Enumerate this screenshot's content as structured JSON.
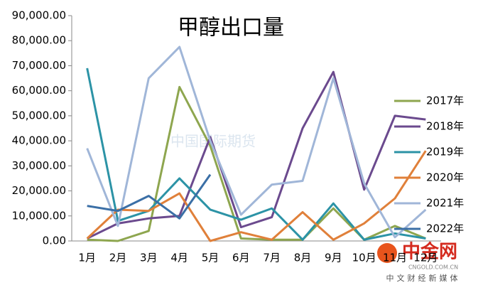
{
  "chart_data": {
    "type": "line",
    "title": "甲醇出口量",
    "categories": [
      "1月",
      "2月",
      "3月",
      "4月",
      "5月",
      "6月",
      "7月",
      "8月",
      "9月",
      "10月",
      "11月",
      "12月"
    ],
    "series": [
      {
        "name": "2017年",
        "color": "#8ea64f",
        "values": [
          500,
          0,
          4000,
          61500,
          38000,
          1000,
          500,
          500,
          13000,
          500,
          6000,
          1000
        ]
      },
      {
        "name": "2018年",
        "color": "#6b4a8e",
        "values": [
          1000,
          7000,
          9000,
          10000,
          41500,
          5500,
          9500,
          45000,
          67500,
          20500,
          50000,
          48500
        ]
      },
      {
        "name": "2019年",
        "color": "#2c93a6",
        "values": [
          69000,
          8000,
          12000,
          25000,
          12500,
          8500,
          13000,
          500,
          15000,
          500,
          3000,
          1000
        ]
      },
      {
        "name": "2020年",
        "color": "#e0803a",
        "values": [
          1000,
          12500,
          12000,
          19000,
          0,
          3500,
          500,
          11500,
          500,
          7000,
          17000,
          36000
        ]
      },
      {
        "name": "2021年",
        "color": "#a0b6d8",
        "values": [
          37000,
          6000,
          65000,
          77500,
          40000,
          10500,
          22500,
          24000,
          65000,
          23000,
          1500,
          12500
        ]
      },
      {
        "name": "2022年",
        "color": "#3b6fa6",
        "values": [
          14000,
          12000,
          18000,
          9000,
          26500,
          null,
          null,
          null,
          null,
          null,
          null,
          null
        ]
      }
    ],
    "ylim": [
      0,
      90000
    ],
    "yticks": [
      {
        "value": 0,
        "label": "0.00"
      },
      {
        "value": 10000,
        "label": "10,000.00"
      },
      {
        "value": 20000,
        "label": "20,000.00"
      },
      {
        "value": 30000,
        "label": "30,000.00"
      },
      {
        "value": 40000,
        "label": "40,000.00"
      },
      {
        "value": 50000,
        "label": "50,000.00"
      },
      {
        "value": 60000,
        "label": "60,000.00"
      },
      {
        "value": 70000,
        "label": "70,000.00"
      },
      {
        "value": 80000,
        "label": "80,000.00"
      },
      {
        "value": 90000,
        "label": "90,000.00"
      }
    ],
    "watermark": "中国国际期货",
    "logo": {
      "name": "中金网",
      "url": "CNGOLD.COM.CN",
      "slogan": "中文财经新媒体"
    }
  }
}
